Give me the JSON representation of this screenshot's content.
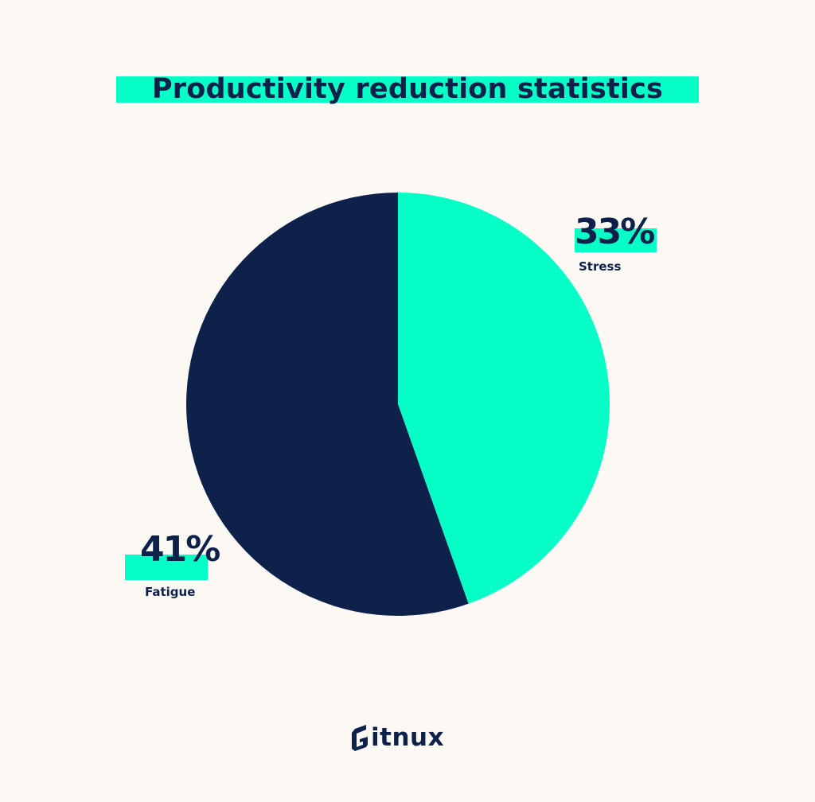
{
  "chart_data": {
    "type": "pie",
    "title": "Productivity reduction statistics",
    "slices": [
      {
        "label": "Stress",
        "value": 33,
        "value_label": "33%",
        "color": "#07ffc7"
      },
      {
        "label": "Fatigue",
        "value": 41,
        "value_label": "41%",
        "color": "#0e214b"
      }
    ],
    "legend": "none",
    "start_angle": "top",
    "direction": "clockwise"
  },
  "brand": {
    "name": "itnux",
    "icon": "gitnux-g-logo-icon"
  },
  "colors": {
    "background": "#fcf9f4",
    "accent": "#07ffc7",
    "dark": "#0e214b"
  }
}
